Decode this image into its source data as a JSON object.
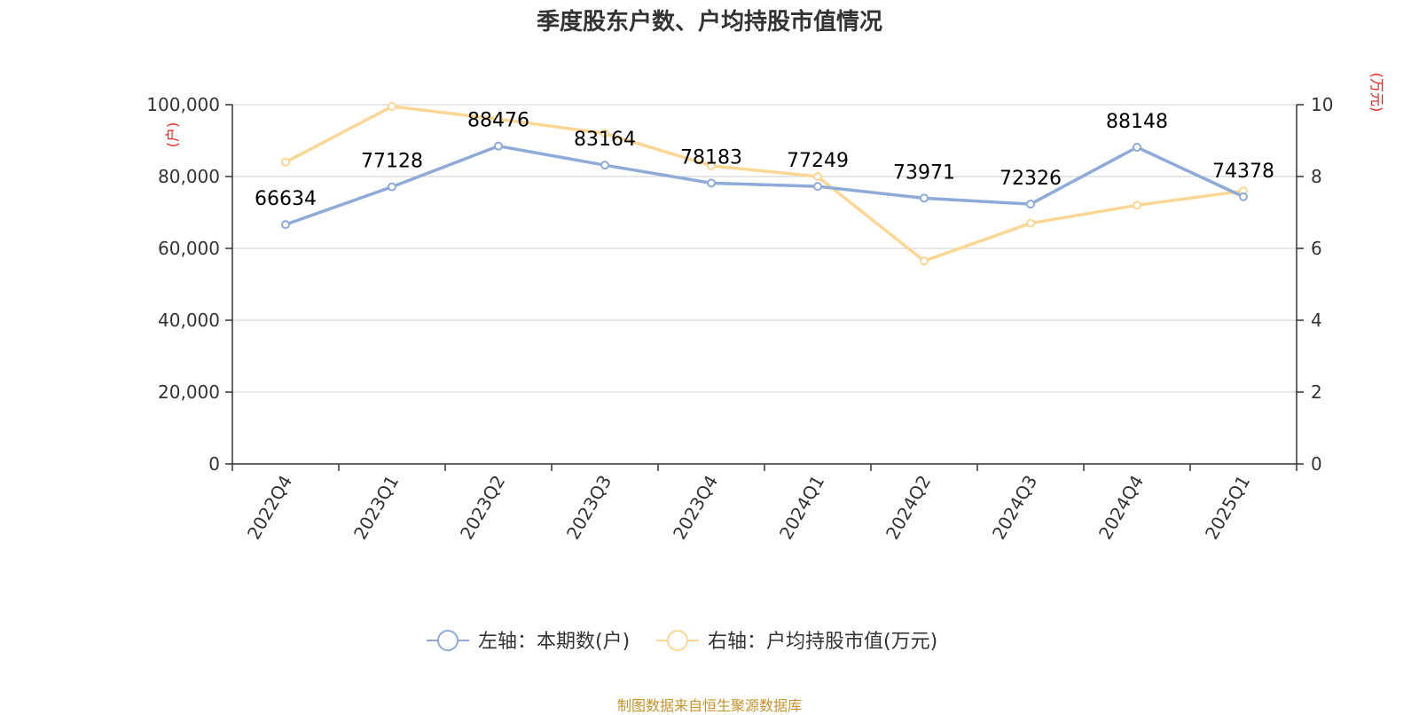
{
  "title": "季度股东户数、户均持股市值情况",
  "source": "制图数据来自恒生聚源数据库",
  "colors": {
    "left_series": "#8eaad8",
    "right_series": "#fcd794",
    "unit_label": "#e8231e",
    "axis": "#333333",
    "grid": "#cccccc",
    "source": "#c8922c"
  },
  "chart_data": {
    "type": "line",
    "categories": [
      "2022Q4",
      "2023Q1",
      "2023Q2",
      "2023Q3",
      "2023Q4",
      "2024Q1",
      "2024Q2",
      "2024Q3",
      "2024Q4",
      "2025Q1"
    ],
    "series": [
      {
        "name": "左轴：本期数(户)",
        "axis": "left",
        "values": [
          66634,
          77128,
          88476,
          83164,
          78183,
          77249,
          73971,
          72326,
          88148,
          74378
        ],
        "data_labels": [
          "66634",
          "77128",
          "88476",
          "83164",
          "78183",
          "77249",
          "73971",
          "72326",
          "88148",
          "74378"
        ]
      },
      {
        "name": "右轴：户均持股市值(万元)",
        "axis": "right",
        "values": [
          8.4,
          9.95,
          9.6,
          9.2,
          8.3,
          8.0,
          5.65,
          6.7,
          7.2,
          7.6
        ]
      }
    ],
    "y_left": {
      "unit": "(户)",
      "ylim": [
        0,
        100000
      ],
      "ticks": [
        0,
        20000,
        40000,
        60000,
        80000,
        100000
      ],
      "tick_labels": [
        "0",
        "20,000",
        "40,000",
        "60,000",
        "80,000",
        "100,000"
      ]
    },
    "y_right": {
      "unit": "(万元)",
      "ylim": [
        0,
        10
      ],
      "ticks": [
        0,
        2,
        4,
        6,
        8,
        10
      ],
      "tick_labels": [
        "0",
        "2",
        "4",
        "6",
        "8",
        "10"
      ]
    },
    "grid": true,
    "legend_position": "bottom"
  }
}
